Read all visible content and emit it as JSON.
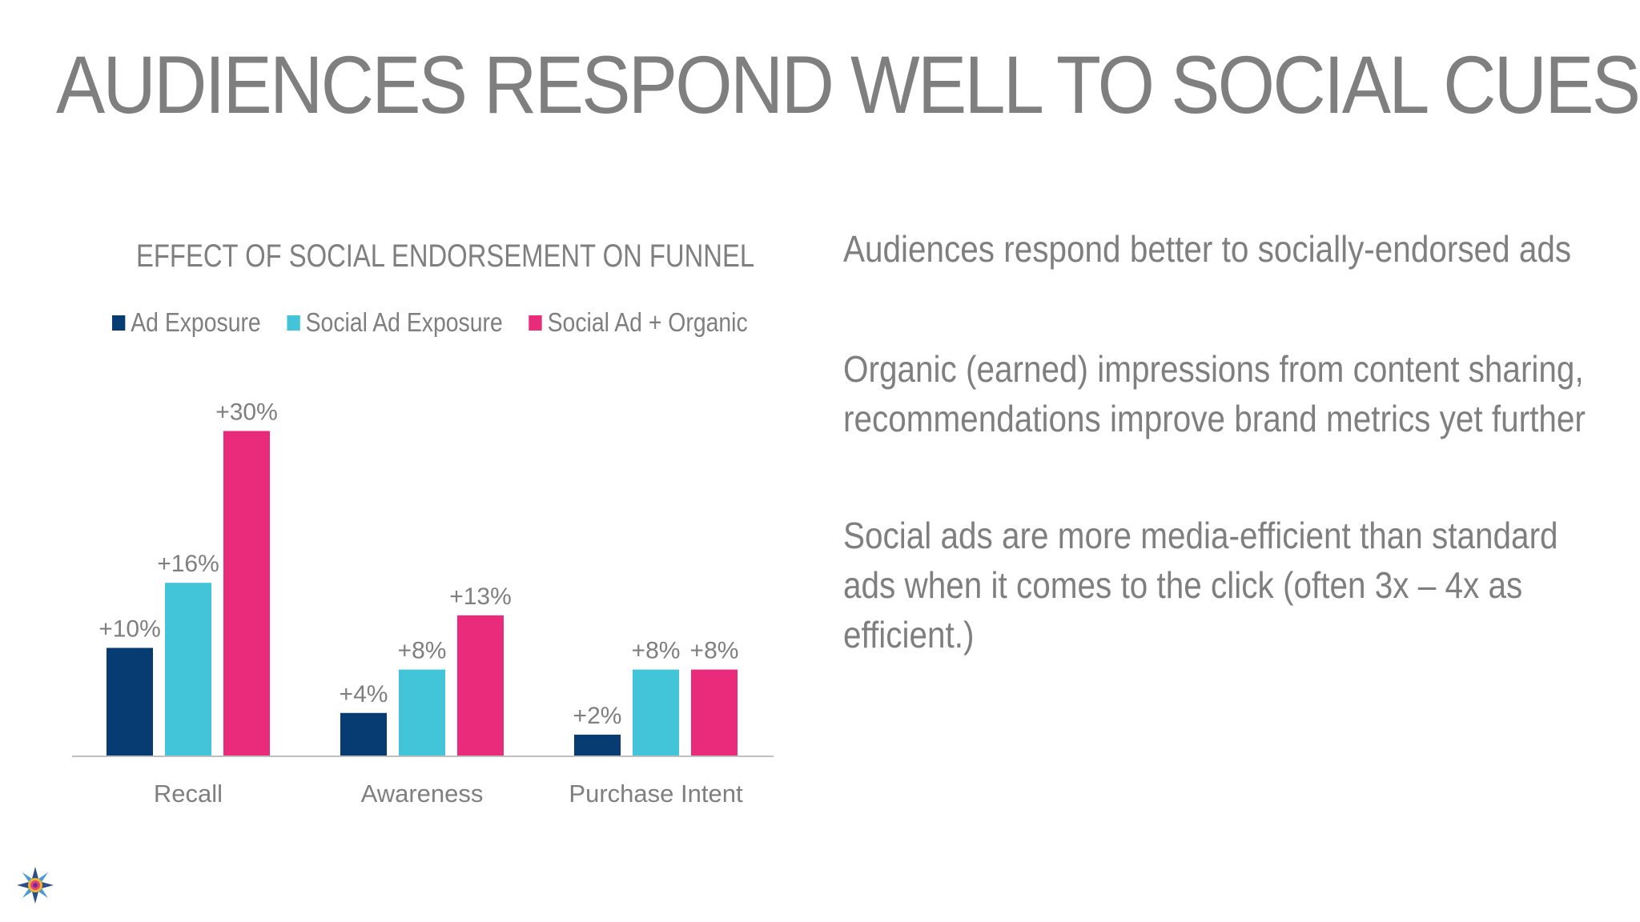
{
  "slide": {
    "title": "AUDIENCES RESPOND WELL TO SOCIAL CUES",
    "bullets": [
      "Audiences respond better to socially-endorsed ads",
      "Organic (earned) impressions from content sharing, recommendations improve brand metrics yet further",
      "Social ads are more media-efficient than standard ads when it comes to the click (often 3x – 4x as efficient.)"
    ]
  },
  "colors": {
    "text": "#7f7f7f",
    "axis": "#bfbfbf",
    "ad_exposure": "#063c71",
    "social_ad_exposure": "#42c5d9",
    "social_ad_organic": "#ea2a7b"
  },
  "chart_data": {
    "type": "bar",
    "title": "EFFECT OF SOCIAL ENDORSEMENT ON FUNNEL",
    "categories": [
      "Recall",
      "Awareness",
      "Purchase Intent"
    ],
    "series": [
      {
        "name": "Ad Exposure",
        "values": [
          10,
          4,
          2
        ],
        "labels": [
          "+10%",
          "+4%",
          "+2%"
        ],
        "color": "#063c71"
      },
      {
        "name": "Social Ad Exposure",
        "values": [
          16,
          8,
          8
        ],
        "labels": [
          "+16%",
          "+8%",
          "+8%"
        ],
        "color": "#42c5d9"
      },
      {
        "name": "Social Ad + Organic",
        "values": [
          30,
          13,
          8
        ],
        "labels": [
          "+30%",
          "+13%",
          "+8%"
        ],
        "color": "#ea2a7b"
      }
    ],
    "ylim": [
      0,
      30
    ],
    "grid": false,
    "legend": "top"
  }
}
